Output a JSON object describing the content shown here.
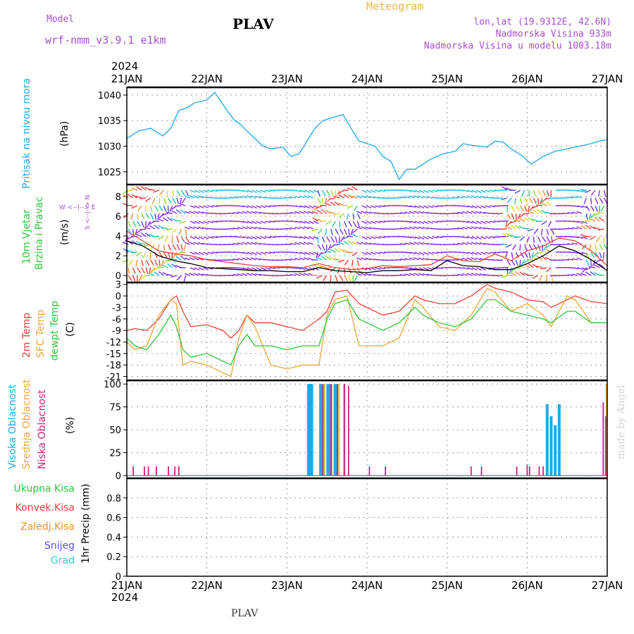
{
  "header": {
    "model_label": "Model",
    "model_name": "wrf-nmm_v3.9.1 e1km",
    "title": "PLAV",
    "meteogram": "Meteogram",
    "location_line": "lon,lat (19.9312E, 42.6N)",
    "elevation_line": "Nadmorska Visina 933m",
    "model_elevation_line": "Nadmorska Visina u modelu 1003.18m"
  },
  "footer": {
    "station": "PLAV",
    "credit": "made by Angel"
  },
  "x_axis": {
    "year": "2024",
    "dates": [
      "21JAN",
      "22JAN",
      "23JAN",
      "24JAN",
      "25JAN",
      "26JAN",
      "27JAN"
    ],
    "range_days": [
      0,
      6
    ]
  },
  "panels": {
    "pressure": {
      "label": "Pritisak na nivou mora",
      "unit": "(hPa)",
      "color": "#1fa8e6"
    },
    "wind": {
      "label_1": "10m Vjetar",
      "label_2": "Brzina i Pravac",
      "unit": "(m/s)",
      "compass": "W <--|--> E",
      "compass_v": "S <--|--> N"
    },
    "temp": {
      "label_1": "2m Temp",
      "label_2": "SFC Temp",
      "label_3": "dewpt Temp",
      "unit": "(C)"
    },
    "cloud": {
      "label_1": "Visoka Oblacnost",
      "label_2": "Srednja Oblacnost",
      "label_3": "Niska Oblacnost",
      "unit": "(%)"
    },
    "precip": {
      "legend": [
        "Ukupna Kisa",
        "Konvek.Kisa",
        "Zaledj.Kisa",
        "Snijeg",
        "Grad"
      ],
      "legend_colors": [
        "#2fc63a",
        "#e8423a",
        "#f0902a",
        "#5a52e0",
        "#2fcfc8"
      ],
      "unit": "1hr Precip (mm)"
    }
  },
  "chart_data": [
    {
      "type": "line",
      "title": "",
      "ylabel": "(hPa)",
      "ylim": [
        1022.5,
        1041.5
      ],
      "yticks": [
        1025,
        1030,
        1035,
        1040
      ],
      "series": [
        {
          "name": "Pritisak na nivou mora",
          "color": "#1fa8e6",
          "x": [
            0,
            0.15,
            0.3,
            0.45,
            0.55,
            0.65,
            0.75,
            0.85,
            1.0,
            1.1,
            1.25,
            1.35,
            1.4,
            1.5,
            1.6,
            1.7,
            1.8,
            1.95,
            2.05,
            2.15,
            2.25,
            2.35,
            2.45,
            2.55,
            2.7,
            2.8,
            2.9,
            3.0,
            3.1,
            3.2,
            3.3,
            3.4,
            3.5,
            3.6,
            3.7,
            3.8,
            3.95,
            4.1,
            4.2,
            4.3,
            4.5,
            4.6,
            4.7,
            4.8,
            4.95,
            5.05,
            5.2,
            5.35,
            5.5,
            5.65,
            5.8,
            5.9,
            6.0
          ],
          "y": [
            1031.5,
            1033,
            1033.5,
            1032,
            1033.5,
            1037,
            1037.5,
            1038.5,
            1039,
            1040.5,
            1037,
            1035,
            1034.5,
            1033,
            1031.5,
            1030,
            1029.5,
            1029.8,
            1028,
            1028.5,
            1031,
            1033.5,
            1035,
            1035.5,
            1036.2,
            1033.5,
            1031,
            1030.5,
            1030,
            1028,
            1027,
            1023.5,
            1025.5,
            1025.5,
            1026.5,
            1027.5,
            1028.5,
            1029,
            1030.5,
            1030.2,
            1029.8,
            1031,
            1030.8,
            1029.5,
            1028,
            1026.5,
            1028,
            1029,
            1029.5,
            1030,
            1030.5,
            1031,
            1031.3
          ]
        }
      ]
    },
    {
      "type": "line",
      "title": "",
      "ylabel": "(m/s)",
      "ylim": [
        -0.7,
        9.2
      ],
      "yticks": [
        0,
        2,
        4,
        6,
        8
      ],
      "series": [
        {
          "name": "",
          "color": "#e8423a",
          "x": [
            0,
            0.2,
            0.4,
            0.6,
            0.8,
            1.0,
            1.2,
            1.4,
            1.6,
            1.8,
            2.0,
            2.2,
            2.4,
            2.6,
            2.8,
            3.0,
            3.2,
            3.4,
            3.6,
            3.8,
            4.0,
            4.2,
            4.4,
            4.6,
            4.8,
            5.0,
            5.2,
            5.4,
            5.6,
            5.8,
            6.0
          ],
          "y": [
            4.5,
            3.5,
            2.5,
            2.2,
            2.0,
            1.6,
            1.4,
            1.2,
            1.0,
            0.9,
            0.9,
            0.8,
            1.2,
            0.8,
            0.6,
            0.7,
            1.0,
            0.9,
            1.0,
            1.1,
            2.0,
            1.5,
            1.4,
            2.2,
            1.5,
            2.5,
            3.0,
            3.8,
            3.5,
            2.5,
            1.0
          ]
        },
        {
          "name": "",
          "color": "#000000",
          "x": [
            0,
            0.2,
            0.4,
            0.6,
            0.8,
            1.0,
            1.2,
            1.4,
            1.6,
            1.8,
            2.0,
            2.2,
            2.4,
            2.6,
            2.8,
            3.0,
            3.2,
            3.4,
            3.6,
            3.8,
            4.0,
            4.2,
            4.4,
            4.6,
            4.8,
            5.0,
            5.2,
            5.4,
            5.6,
            5.8,
            6.0
          ],
          "y": [
            3.5,
            3.0,
            2.0,
            1.5,
            1.2,
            0.8,
            0.7,
            0.6,
            0.5,
            0.5,
            0.4,
            0.4,
            0.8,
            0.5,
            0.4,
            0.3,
            0.5,
            0.5,
            0.6,
            0.5,
            1.5,
            1.0,
            0.9,
            0.6,
            0.6,
            1.2,
            2.0,
            3.0,
            2.5,
            1.6,
            0.5
          ]
        }
      ]
    },
    {
      "type": "line",
      "title": "",
      "ylabel": "(C)",
      "ylim": [
        -22,
        3.5
      ],
      "yticks": [
        3,
        0,
        -3,
        -6,
        -9,
        -12,
        -15,
        -18,
        -21
      ],
      "series": [
        {
          "name": "2m Temp",
          "color": "#e8423a",
          "x": [
            0,
            0.1,
            0.25,
            0.4,
            0.55,
            0.62,
            0.7,
            0.8,
            1.0,
            1.2,
            1.3,
            1.4,
            1.5,
            1.6,
            1.8,
            2.0,
            2.2,
            2.4,
            2.5,
            2.6,
            2.75,
            2.9,
            3.0,
            3.2,
            3.4,
            3.6,
            3.7,
            3.9,
            4.1,
            4.3,
            4.5,
            4.6,
            4.8,
            5.0,
            5.2,
            5.3,
            5.5,
            5.6,
            5.8,
            6.0
          ],
          "y": [
            -9,
            -8.5,
            -9,
            -6,
            -1,
            0,
            -4,
            -8,
            -7.5,
            -9,
            -11,
            -9,
            -5,
            -7,
            -7,
            -8,
            -9,
            -6,
            -4,
            1,
            1.5,
            -2,
            -3,
            -5,
            -4,
            0,
            -1,
            -2,
            -2,
            0,
            3,
            2,
            1,
            -1,
            -1.5,
            -3,
            -1,
            0,
            -1.5,
            -2
          ]
        },
        {
          "name": "SFC Temp",
          "color": "#e8a838",
          "x": [
            0,
            0.1,
            0.25,
            0.4,
            0.55,
            0.62,
            0.7,
            0.8,
            1.0,
            1.2,
            1.3,
            1.4,
            1.5,
            1.6,
            1.8,
            2.0,
            2.2,
            2.4,
            2.5,
            2.6,
            2.75,
            2.9,
            3.0,
            3.2,
            3.4,
            3.6,
            3.7,
            3.9,
            4.1,
            4.3,
            4.5,
            4.6,
            4.8,
            5.0,
            5.2,
            5.3,
            5.5,
            5.6,
            5.8,
            6.0
          ],
          "y": [
            -12,
            -14,
            -13,
            -5,
            -1,
            -2,
            -18,
            -17,
            -18,
            -20,
            -21,
            -11,
            -5,
            -8,
            -18,
            -19,
            -18,
            -18,
            -5,
            -1,
            0,
            -13,
            -13,
            -13,
            -11,
            -1,
            -3,
            -8,
            -9,
            -5,
            2,
            1,
            -4,
            -2,
            -5,
            -8,
            0,
            -1,
            -7,
            -7
          ]
        },
        {
          "name": "dewpt Temp",
          "color": "#2fc63a",
          "x": [
            0,
            0.1,
            0.25,
            0.4,
            0.55,
            0.62,
            0.7,
            0.8,
            1.0,
            1.2,
            1.3,
            1.4,
            1.5,
            1.6,
            1.8,
            2.0,
            2.2,
            2.4,
            2.5,
            2.6,
            2.75,
            2.9,
            3.0,
            3.2,
            3.4,
            3.6,
            3.7,
            3.9,
            4.1,
            4.3,
            4.5,
            4.6,
            4.8,
            5.0,
            5.2,
            5.3,
            5.5,
            5.6,
            5.8,
            6.0
          ],
          "y": [
            -11,
            -13,
            -14,
            -10,
            -5,
            -8,
            -14,
            -16,
            -15,
            -17,
            -18,
            -13,
            -10,
            -13,
            -13,
            -14,
            -13,
            -13,
            -6,
            -2,
            -1,
            -6,
            -7,
            -9,
            -7,
            -3,
            -5,
            -7,
            -8,
            -6,
            -1,
            -1,
            -4,
            -5,
            -6,
            -7,
            -4,
            -4,
            -7,
            -7
          ]
        }
      ]
    },
    {
      "type": "bar",
      "title": "",
      "ylabel": "(%)",
      "ylim": [
        -3,
        104
      ],
      "yticks": [
        0,
        25,
        50,
        75,
        100
      ],
      "series": [
        {
          "name": "Visoka Oblacnost",
          "color": "#1fa8e6",
          "x": [
            2.27,
            2.29,
            2.31,
            2.42,
            2.44,
            2.51,
            2.53,
            2.6,
            2.62,
            5.25,
            5.3,
            5.35,
            5.4
          ],
          "y": [
            100,
            100,
            100,
            100,
            100,
            100,
            100,
            100,
            100,
            78,
            65,
            55,
            78
          ]
        },
        {
          "name": "Srednja Oblacnost",
          "color": "#e8a838",
          "x": [
            2.47,
            2.56,
            2.65,
            2.71,
            5.99
          ],
          "y": [
            100,
            100,
            100,
            100,
            100
          ]
        },
        {
          "name": "Niska Oblacnost",
          "color": "#c4237e",
          "x": [
            0.08,
            0.22,
            0.27,
            0.37,
            0.52,
            0.6,
            0.65,
            2.45,
            2.55,
            2.63,
            2.72,
            2.77,
            3.03,
            3.23,
            4.3,
            4.43,
            4.87,
            5.0,
            5.03,
            5.15,
            5.2,
            5.95,
            5.98
          ],
          "y": [
            10,
            10,
            10,
            10,
            10,
            10,
            10,
            100,
            100,
            100,
            100,
            98,
            10,
            10,
            10,
            10,
            10,
            12,
            10,
            10,
            10,
            80,
            65
          ]
        }
      ]
    },
    {
      "type": "bar",
      "title": "",
      "ylabel": "1hr Precip (mm)",
      "ylim": [
        0,
        1
      ],
      "yticks": [
        0,
        0.2,
        0.4,
        0.6,
        0.8
      ],
      "series": []
    }
  ]
}
